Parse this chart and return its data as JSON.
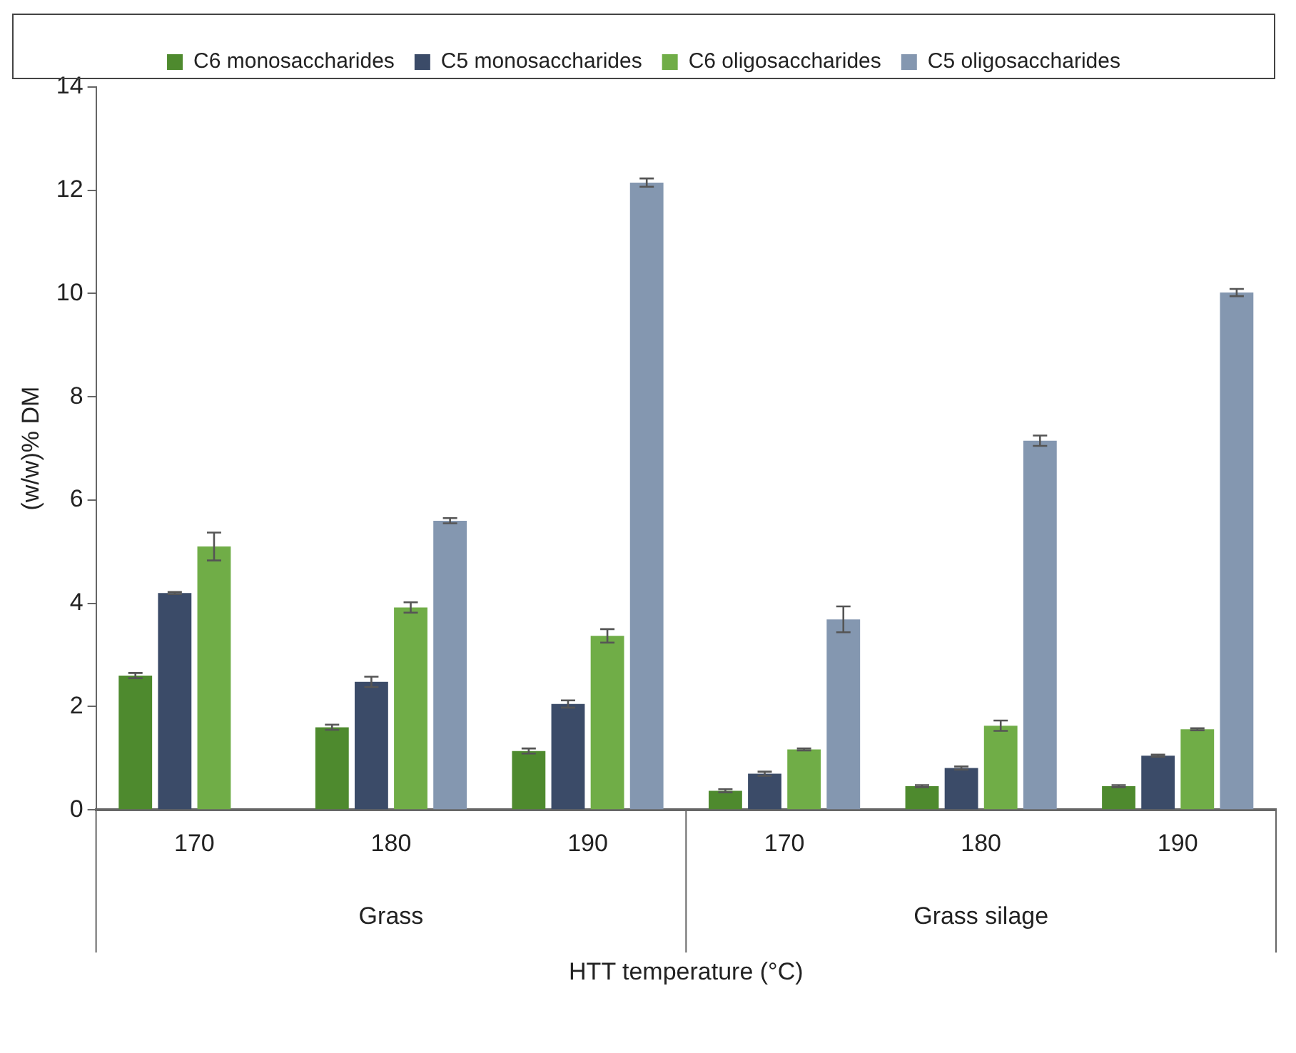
{
  "chart_data": {
    "type": "bar",
    "xlabel": "HTT temperature (°C)",
    "ylabel": "(w/w)% DM",
    "categories": [
      "170",
      "180",
      "190",
      "170",
      "180",
      "190"
    ],
    "annotations": [
      "Grass",
      "Grass silage"
    ],
    "series": [
      {
        "name": "C6 monosaccharides",
        "color": "#4e8a2e",
        "values": [
          2.6,
          1.6,
          1.14,
          0.37,
          0.46,
          0.46
        ],
        "errors": [
          0.05,
          0.05,
          0.05,
          0.03,
          0.02,
          0.02
        ]
      },
      {
        "name": "C5 monosaccharides",
        "color": "#3b4b68",
        "values": [
          4.2,
          2.48,
          2.05,
          0.7,
          0.81,
          1.05
        ],
        "errors": [
          0.02,
          0.1,
          0.07,
          0.04,
          0.03,
          0.02
        ]
      },
      {
        "name": "C6 oligosaccharides",
        "color": "#70ad47",
        "values": [
          5.1,
          3.92,
          3.37,
          1.17,
          1.63,
          1.56
        ],
        "errors": [
          0.27,
          0.1,
          0.13,
          0.02,
          0.1,
          0.02
        ]
      },
      {
        "name": "C5 oligosaccharides",
        "color": "#8497b0",
        "values": [
          0,
          5.6,
          12.15,
          3.69,
          7.15,
          10.02
        ],
        "errors": [
          null,
          0.05,
          0.08,
          0.25,
          0.1,
          0.07
        ]
      }
    ],
    "ylim": [
      0,
      14
    ],
    "yticks": [
      0,
      2,
      4,
      6,
      8,
      10,
      12,
      14
    ],
    "grid": false,
    "legend": "top"
  }
}
